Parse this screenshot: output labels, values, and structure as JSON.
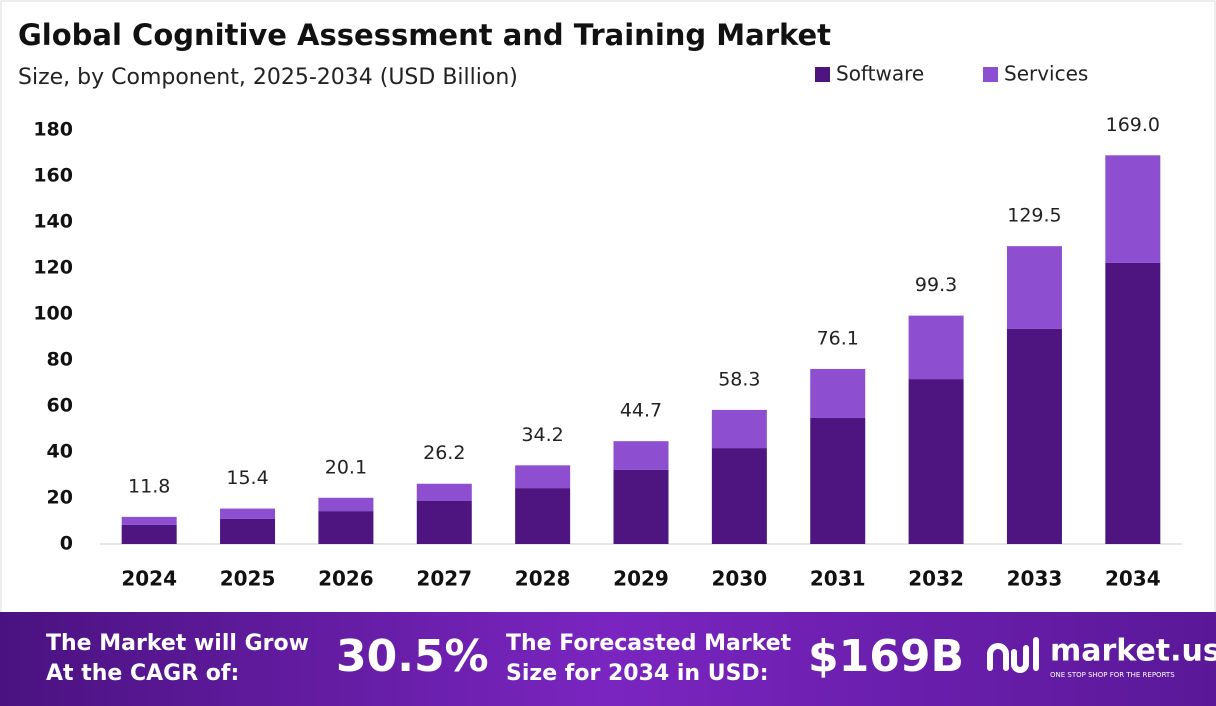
{
  "chart_data": {
    "type": "stacked-bar",
    "title": "Global Cognitive Assessment and Training Market",
    "subtitle": "Size, by Component, 2025-2034 (USD Billion)",
    "categories": [
      "2024",
      "2025",
      "2026",
      "2027",
      "2028",
      "2029",
      "2030",
      "2031",
      "2032",
      "2033",
      "2034"
    ],
    "series": [
      {
        "name": "Software",
        "color": "#4e1580",
        "values": [
          8.3,
          10.9,
          14.3,
          18.7,
          24.3,
          32.2,
          41.7,
          54.8,
          71.7,
          93.5,
          122.2
        ]
      },
      {
        "name": "Services",
        "color": "#8d4ecf",
        "values": [
          3.5,
          4.5,
          5.8,
          7.5,
          9.9,
          12.5,
          16.6,
          21.3,
          27.6,
          36.0,
          46.8
        ]
      }
    ],
    "totals": [
      11.8,
      15.4,
      20.1,
      26.2,
      34.2,
      44.7,
      58.3,
      76.1,
      99.3,
      129.5,
      169
    ],
    "total_labels": [
      "11.8",
      "15.4",
      "20.1",
      "26.2",
      "34.2",
      "44.7",
      "58.3",
      "76.1",
      "99.3",
      "129.5",
      "169.0"
    ],
    "ylim": [
      0,
      180
    ],
    "yticks": [
      0,
      20,
      40,
      60,
      80,
      100,
      120,
      140,
      160,
      180
    ],
    "grid": false,
    "legend": "top-right"
  },
  "footer": {
    "cagr_text": [
      "The Market will Grow",
      "At the CAGR of:"
    ],
    "cagr_value": "30.5%",
    "forecast_text": [
      "The Forecasted Market",
      "Size for 2034 in USD:"
    ],
    "forecast_value": "$169B",
    "brand": "market.us",
    "tagline": "ONE STOP SHOP FOR THE REPORTS"
  }
}
